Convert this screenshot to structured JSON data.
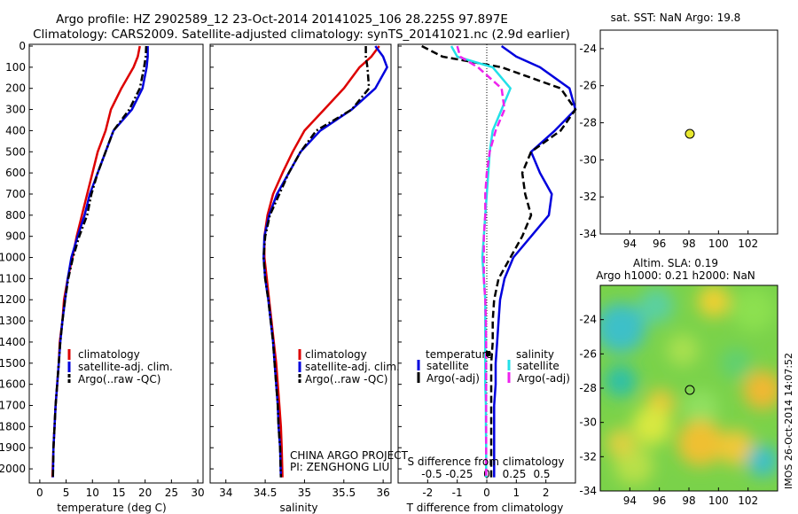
{
  "header": {
    "line1": "Argo profile: HZ 2902589_12 23-Oct-2014 20141025_106 28.225S 97.897E",
    "line2": "Climatology: CARS2009. Satellite-adjusted climatology: synTS_20141021.nc (2.9d earlier)"
  },
  "colors": {
    "climatology": "#dd0000",
    "satellite": "#0000dd",
    "argo": "#000000",
    "salinity_sat": "#22e0e8",
    "salinity_argo": "#ee22ee"
  },
  "depth_ticks": [
    "0",
    "100",
    "200",
    "300",
    "400",
    "500",
    "600",
    "700",
    "800",
    "900",
    "1000",
    "1100",
    "1200",
    "1300",
    "1400",
    "1500",
    "1600",
    "1700",
    "1800",
    "1900",
    "2000"
  ],
  "panels": {
    "temperature": {
      "xlabel": "temperature (deg C)",
      "xticks": [
        "0",
        "5",
        "10",
        "15",
        "20",
        "25",
        "30"
      ],
      "legend": [
        "climatology",
        "satellite-adj. clim.",
        "Argo(..raw -QC)"
      ]
    },
    "salinity": {
      "xlabel": "salinity",
      "xticks": [
        "34",
        "34.5",
        "35",
        "35.5",
        "36"
      ],
      "legend": [
        "climatology",
        "satellite-adj. clim.",
        "Argo(..raw -QC)"
      ],
      "credit1": "CHINA ARGO PROJECT",
      "credit2": "PI: ZENGHONG LIU"
    },
    "difference": {
      "xlabel": "T difference from climatology",
      "top_label": "S difference from climatology",
      "t_ticks": [
        "-2",
        "-1",
        "0",
        "1",
        "2"
      ],
      "s_ticks": [
        "-0.5",
        "-0.25",
        "0",
        "0.25",
        "0.5"
      ],
      "legend_temp_title": "temperature",
      "legend_sal_title": "salinity",
      "legend_temp": [
        "satellite",
        "Argo(-adj)"
      ],
      "legend_sal": [
        "satellite",
        "Argo(-adj)"
      ]
    }
  },
  "map_sst": {
    "title": "sat. SST: NaN Argo: 19.8",
    "yticks": [
      "-24",
      "-26",
      "-28",
      "-30",
      "-32",
      "-34"
    ],
    "xticks": [
      "94",
      "96",
      "98",
      "100",
      "102"
    ]
  },
  "map_sla": {
    "title1": "Altim. SLA: 0.19",
    "title2": "Argo h1000: 0.21 h2000: NaN",
    "yticks": [
      "-24",
      "-26",
      "-28",
      "-30",
      "-32",
      "-34"
    ],
    "xticks": [
      "94",
      "96",
      "98",
      "100",
      "102"
    ]
  },
  "side_label": "IMOS 26-Oct-2014 14:07:52",
  "chart_data": [
    {
      "type": "line",
      "title": "",
      "xlabel": "temperature (deg C)",
      "ylabel": "",
      "xlim": [
        -2,
        31
      ],
      "ylim": [
        2050,
        0
      ],
      "series": [
        {
          "name": "climatology",
          "x": [
            19,
            18.6,
            17.8,
            15.5,
            13.5,
            12.5,
            11,
            10,
            9,
            8,
            7,
            6.2,
            5.3,
            4.6,
            4.3,
            3.8,
            3.6,
            3.3,
            3,
            2.8,
            2.6,
            2.4
          ],
          "y": [
            0,
            50,
            100,
            200,
            300,
            400,
            500,
            600,
            700,
            800,
            900,
            1000,
            1100,
            1200,
            1300,
            1400,
            1500,
            1600,
            1700,
            1800,
            1900,
            2040
          ]
        },
        {
          "name": "satellite-adj. clim.",
          "x": [
            20.5,
            20.5,
            20.3,
            19.5,
            17.5,
            14,
            12.5,
            11,
            9.5,
            8.5,
            7.2,
            6,
            5.3,
            4.8,
            4.3,
            3.9,
            3.6,
            3.3,
            3,
            2.8,
            2.6,
            2.5
          ],
          "y": [
            0,
            50,
            100,
            200,
            300,
            400,
            500,
            600,
            700,
            800,
            900,
            1000,
            1100,
            1200,
            1300,
            1400,
            1500,
            1600,
            1700,
            1800,
            1900,
            2040
          ]
        },
        {
          "name": "Argo(..raw -QC)",
          "x": [
            20.2,
            20.1,
            19.8,
            19,
            17,
            14,
            12.5,
            11,
            9.8,
            9,
            7.5,
            6.3,
            5.4,
            4.8,
            4.3,
            3.9,
            3.6,
            3.3,
            3,
            2.8,
            2.6,
            2.5
          ],
          "y": [
            0,
            50,
            100,
            200,
            300,
            400,
            500,
            600,
            700,
            800,
            900,
            1000,
            1100,
            1200,
            1300,
            1400,
            1500,
            1600,
            1700,
            1800,
            1900,
            2040
          ]
        }
      ]
    },
    {
      "type": "line",
      "title": "",
      "xlabel": "salinity",
      "ylabel": "",
      "xlim": [
        33.8,
        36.1
      ],
      "ylim": [
        2050,
        0
      ],
      "series": [
        {
          "name": "climatology",
          "x": [
            35.95,
            35.85,
            35.7,
            35.5,
            35.25,
            35,
            34.85,
            34.72,
            34.6,
            34.53,
            34.49,
            34.49,
            34.52,
            34.55,
            34.58,
            34.61,
            34.64,
            34.66,
            34.68,
            34.7,
            34.71,
            34.72
          ],
          "y": [
            0,
            50,
            100,
            200,
            300,
            400,
            500,
            600,
            700,
            800,
            900,
            1000,
            1100,
            1200,
            1300,
            1400,
            1500,
            1600,
            1700,
            1800,
            1900,
            2040
          ]
        },
        {
          "name": "satellite-adj. clim.",
          "x": [
            35.9,
            36.0,
            36.05,
            35.9,
            35.6,
            35.2,
            34.95,
            34.8,
            34.65,
            34.55,
            34.49,
            34.48,
            34.5,
            34.54,
            34.57,
            34.6,
            34.62,
            34.64,
            34.66,
            34.67,
            34.69,
            34.7
          ],
          "y": [
            0,
            50,
            100,
            200,
            300,
            400,
            500,
            600,
            700,
            800,
            900,
            1000,
            1100,
            1200,
            1300,
            1400,
            1500,
            1600,
            1700,
            1800,
            1900,
            2040
          ]
        },
        {
          "name": "Argo(..raw -QC)",
          "x": [
            35.78,
            35.78,
            35.8,
            35.82,
            35.6,
            35.15,
            34.95,
            34.8,
            34.68,
            34.56,
            34.5,
            34.48,
            34.5,
            34.54,
            34.57,
            34.6,
            34.62,
            34.64,
            34.66,
            34.67,
            34.69,
            34.7
          ],
          "y": [
            0,
            50,
            100,
            200,
            300,
            400,
            500,
            600,
            700,
            800,
            900,
            1000,
            1100,
            1200,
            1300,
            1400,
            1500,
            1600,
            1700,
            1800,
            1900,
            2040
          ]
        }
      ]
    },
    {
      "type": "line",
      "title": "",
      "xlabel": "T difference from climatology",
      "ylabel": "",
      "xlim": [
        -3,
        3
      ],
      "ylim": [
        2050,
        0
      ],
      "series": [
        {
          "name": "temperature satellite",
          "x": [
            0.5,
            1,
            1.8,
            2.8,
            3,
            2.3,
            1.5,
            1.8,
            2.2,
            2.1,
            1.5,
            0.9,
            0.6,
            0.45,
            0.4,
            0.35,
            0.3,
            0.3,
            0.25,
            0.25,
            0.25,
            0.25
          ],
          "y": [
            0,
            50,
            100,
            200,
            300,
            400,
            500,
            600,
            700,
            800,
            900,
            1000,
            1100,
            1200,
            1300,
            1400,
            1500,
            1600,
            1700,
            1800,
            1900,
            2040
          ]
        },
        {
          "name": "temperature Argo(-adj)",
          "x": [
            -2.2,
            -1.5,
            0.5,
            2.5,
            3,
            2.5,
            1.5,
            1.2,
            1.3,
            1.5,
            1.2,
            0.8,
            0.4,
            0.25,
            0.2,
            0.2,
            0.15,
            0.15,
            0.15,
            0.15,
            0.15,
            0.15
          ],
          "y": [
            0,
            50,
            100,
            200,
            300,
            400,
            500,
            600,
            700,
            800,
            900,
            1000,
            1100,
            1200,
            1300,
            1400,
            1500,
            1600,
            1700,
            1800,
            1900,
            2040
          ]
        },
        {
          "name": "salinity satellite",
          "x": [
            -1.2,
            -1.0,
            0.2,
            0.8,
            0.5,
            0.2,
            0.1,
            0.05,
            0.0,
            -0.05,
            -0.1,
            -0.15,
            -0.1,
            -0.05,
            -0.05,
            -0.05,
            -0.05,
            -0.05,
            -0.03,
            -0.03,
            -0.02,
            -0.02
          ],
          "y": [
            0,
            50,
            100,
            200,
            300,
            400,
            500,
            600,
            700,
            800,
            900,
            1000,
            1100,
            1200,
            1300,
            1400,
            1500,
            1600,
            1700,
            1800,
            1900,
            2040
          ]
        },
        {
          "name": "salinity Argo(-adj)",
          "x": [
            -1.0,
            -0.9,
            -0.3,
            0.5,
            0.6,
            0.3,
            0.1,
            0.0,
            -0.05,
            -0.05,
            -0.1,
            -0.1,
            -0.1,
            -0.05,
            -0.03,
            -0.02,
            -0.02,
            -0.02,
            -0.02,
            -0.02,
            -0.02,
            -0.02
          ],
          "y": [
            0,
            50,
            100,
            200,
            300,
            400,
            500,
            600,
            700,
            800,
            900,
            1000,
            1100,
            1200,
            1300,
            1400,
            1500,
            1600,
            1700,
            1800,
            1900,
            2040
          ]
        }
      ]
    },
    {
      "type": "scatter",
      "title": "sat. SST: NaN Argo: 19.8",
      "xlim": [
        92,
        104
      ],
      "ylim": [
        -34,
        -23
      ],
      "points": [
        {
          "x": 98,
          "y": -28.2
        }
      ]
    },
    {
      "type": "heatmap",
      "title": "Altim. SLA: 0.19",
      "xlim": [
        92,
        104
      ],
      "ylim": [
        -34,
        -22
      ],
      "points": [
        {
          "x": 98,
          "y": -28.2
        }
      ]
    }
  ]
}
